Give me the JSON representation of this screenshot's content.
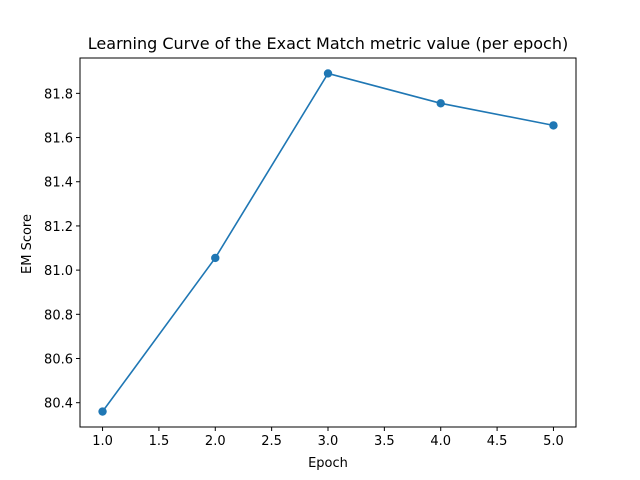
{
  "chart_data": {
    "type": "line",
    "title": "Learning Curve of the Exact Match metric value (per epoch)",
    "xlabel": "Epoch",
    "ylabel": "EM Score",
    "xlim": [
      0.8,
      5.2
    ],
    "ylim": [
      80.29,
      81.96
    ],
    "xticks": [
      1.0,
      1.5,
      2.0,
      2.5,
      3.0,
      3.5,
      4.0,
      4.5,
      5.0
    ],
    "xtick_labels": [
      "1.0",
      "1.5",
      "2.0",
      "2.5",
      "3.0",
      "3.5",
      "4.0",
      "4.5",
      "5.0"
    ],
    "yticks": [
      80.4,
      80.6,
      80.8,
      81.0,
      81.2,
      81.4,
      81.6,
      81.8
    ],
    "ytick_labels": [
      "80.4",
      "80.6",
      "80.8",
      "81.0",
      "81.2",
      "81.4",
      "81.6",
      "81.8"
    ],
    "grid": false,
    "series": [
      {
        "x": [
          1,
          2,
          3,
          4,
          5
        ],
        "y": [
          80.36,
          81.055,
          81.89,
          81.755,
          81.655
        ],
        "color": "#1f77b4",
        "marker": "circle"
      }
    ]
  }
}
